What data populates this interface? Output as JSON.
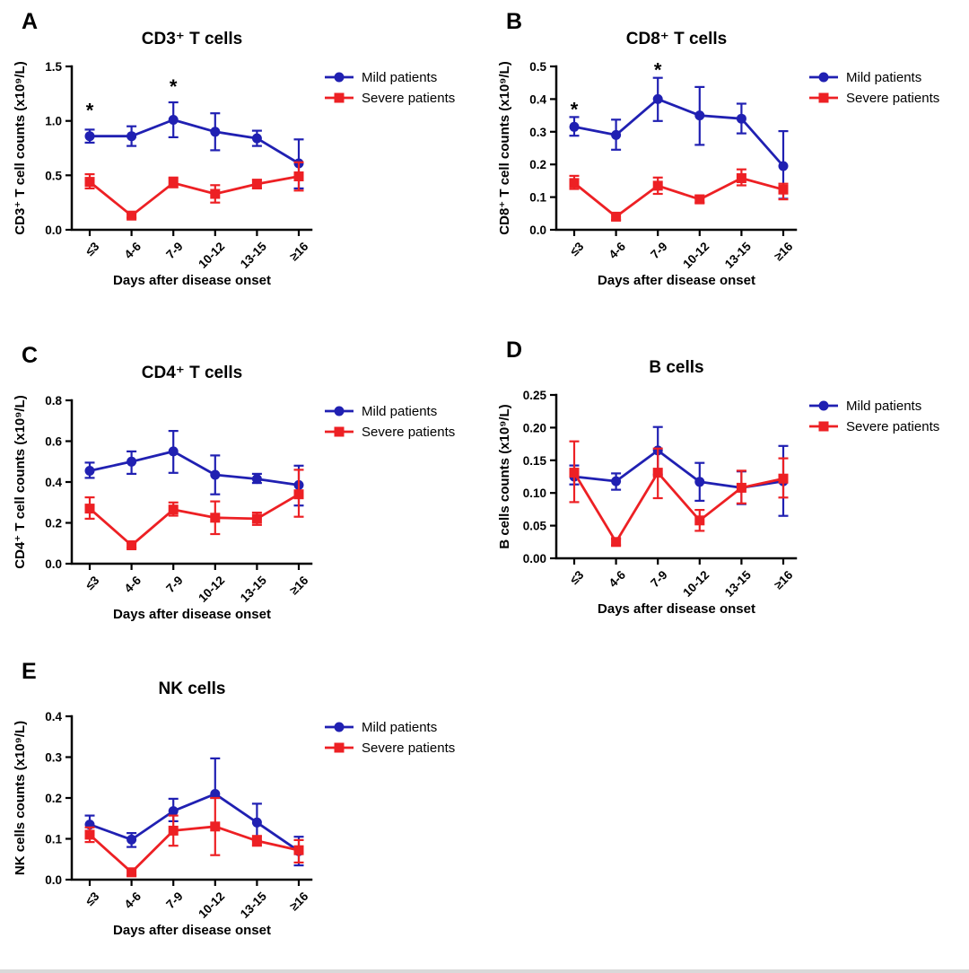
{
  "figure": {
    "xlabel": "Days after disease onset",
    "categories": [
      "≤3",
      "4-6",
      "7-9",
      "10-12",
      "13-15",
      "≥16"
    ],
    "colors": {
      "mild": "#2020B2",
      "severe": "#ED2024",
      "axis": "#000000"
    },
    "legend": {
      "position": "right-top",
      "items": [
        "Mild patients",
        "Severe patients"
      ]
    }
  },
  "chart_data": [
    {
      "type": "line",
      "panel_label": "A",
      "title": "CD3⁺ T cells",
      "ylabel": "CD3⁺ T cell counts (x10⁹/L)",
      "xlabel": "Days after disease onset",
      "categories": [
        "≤3",
        "4-6",
        "7-9",
        "10-12",
        "13-15",
        "≥16"
      ],
      "ylim": [
        0.0,
        1.5
      ],
      "yticks": [
        0.0,
        0.5,
        1.0,
        1.5
      ],
      "ydecimals": 1,
      "grid": false,
      "series": [
        {
          "name": "Mild patients",
          "color_key": "mild",
          "marker": "circle",
          "values": [
            0.86,
            0.86,
            1.01,
            0.9,
            0.84,
            0.61
          ],
          "err_up": [
            0.06,
            0.09,
            0.16,
            0.17,
            0.07,
            0.22
          ],
          "err_dn": [
            0.06,
            0.09,
            0.16,
            0.17,
            0.07,
            0.23
          ]
        },
        {
          "name": "Severe patients",
          "color_key": "severe",
          "marker": "square",
          "values": [
            0.44,
            0.13,
            0.43,
            0.33,
            0.42,
            0.49
          ],
          "err_up": [
            0.07,
            0.02,
            0.05,
            0.08,
            0.04,
            0.13
          ],
          "err_dn": [
            0.06,
            0.02,
            0.04,
            0.08,
            0.04,
            0.13
          ]
        }
      ],
      "significance": [
        {
          "category_index": 0,
          "label": "*",
          "y": 1.1
        },
        {
          "category_index": 2,
          "label": "*",
          "y": 1.32
        }
      ]
    },
    {
      "type": "line",
      "panel_label": "B",
      "title": "CD8⁺ T cells",
      "ylabel": "CD8⁺ T cell counts (x10⁹/L)",
      "xlabel": "Days after disease onset",
      "categories": [
        "≤3",
        "4-6",
        "7-9",
        "10-12",
        "13-15",
        "≥16"
      ],
      "ylim": [
        0.0,
        0.5
      ],
      "yticks": [
        0.0,
        0.1,
        0.2,
        0.3,
        0.4,
        0.5
      ],
      "ydecimals": 1,
      "grid": false,
      "series": [
        {
          "name": "Mild patients",
          "color_key": "mild",
          "marker": "circle",
          "values": [
            0.315,
            0.29,
            0.4,
            0.35,
            0.34,
            0.195
          ],
          "err_up": [
            0.03,
            0.047,
            0.065,
            0.087,
            0.046,
            0.107
          ],
          "err_dn": [
            0.027,
            0.045,
            0.067,
            0.09,
            0.045,
            0.1
          ]
        },
        {
          "name": "Severe patients",
          "color_key": "severe",
          "marker": "square",
          "values": [
            0.143,
            0.04,
            0.135,
            0.093,
            0.158,
            0.123
          ],
          "err_up": [
            0.022,
            0.012,
            0.025,
            0.012,
            0.027,
            0.018
          ],
          "err_dn": [
            0.018,
            0.01,
            0.025,
            0.01,
            0.022,
            0.03
          ]
        }
      ],
      "significance": [
        {
          "category_index": 0,
          "label": "*",
          "y": 0.37
        },
        {
          "category_index": 2,
          "label": "*",
          "y": 0.49
        }
      ]
    },
    {
      "type": "line",
      "panel_label": "C",
      "title": "CD4⁺ T cells",
      "ylabel": "CD4⁺ T cell counts (x10⁹/L)",
      "xlabel": "Days after disease onset",
      "categories": [
        "≤3",
        "4-6",
        "7-9",
        "10-12",
        "13-15",
        "≥16"
      ],
      "ylim": [
        0.0,
        0.8
      ],
      "yticks": [
        0.0,
        0.2,
        0.4,
        0.6,
        0.8
      ],
      "ydecimals": 1,
      "grid": false,
      "series": [
        {
          "name": "Mild patients",
          "color_key": "mild",
          "marker": "circle",
          "values": [
            0.455,
            0.5,
            0.55,
            0.435,
            0.415,
            0.385
          ],
          "err_up": [
            0.04,
            0.05,
            0.1,
            0.095,
            0.025,
            0.095
          ],
          "err_dn": [
            0.035,
            0.06,
            0.105,
            0.095,
            0.02,
            0.1
          ]
        },
        {
          "name": "Severe patients",
          "color_key": "severe",
          "marker": "square",
          "values": [
            0.27,
            0.09,
            0.265,
            0.225,
            0.22,
            0.34
          ],
          "err_up": [
            0.055,
            0.012,
            0.035,
            0.08,
            0.03,
            0.12
          ],
          "err_dn": [
            0.05,
            0.012,
            0.03,
            0.08,
            0.03,
            0.11
          ]
        }
      ],
      "significance": []
    },
    {
      "type": "line",
      "panel_label": "D",
      "title": "B cells",
      "ylabel": "B cells counts (x10⁹/L)",
      "xlabel": "Days after disease onset",
      "categories": [
        "≤3",
        "4-6",
        "7-9",
        "10-12",
        "13-15",
        "≥16"
      ],
      "ylim": [
        0.0,
        0.25
      ],
      "yticks": [
        0.0,
        0.05,
        0.1,
        0.15,
        0.2,
        0.25
      ],
      "ydecimals": 2,
      "grid": false,
      "series": [
        {
          "name": "Mild patients",
          "color_key": "mild",
          "marker": "circle",
          "values": [
            0.125,
            0.118,
            0.165,
            0.117,
            0.108,
            0.118
          ],
          "err_up": [
            0.017,
            0.012,
            0.036,
            0.029,
            0.025,
            0.054
          ],
          "err_dn": [
            0.012,
            0.013,
            0.037,
            0.029,
            0.025,
            0.053
          ]
        },
        {
          "name": "Severe patients",
          "color_key": "severe",
          "marker": "square",
          "values": [
            0.131,
            0.025,
            0.131,
            0.058,
            0.108,
            0.122
          ],
          "err_up": [
            0.048,
            0.005,
            0.037,
            0.016,
            0.026,
            0.031
          ],
          "err_dn": [
            0.045,
            0.005,
            0.039,
            0.016,
            0.024,
            0.029
          ]
        }
      ],
      "significance": []
    },
    {
      "type": "line",
      "panel_label": "E",
      "title": "NK cells",
      "ylabel": "NK cells counts (x10⁹/L)",
      "xlabel": "Days after disease onset",
      "categories": [
        "≤3",
        "4-6",
        "7-9",
        "10-12",
        "13-15",
        "≥16"
      ],
      "ylim": [
        0.0,
        0.4
      ],
      "yticks": [
        0.0,
        0.1,
        0.2,
        0.3,
        0.4
      ],
      "ydecimals": 1,
      "grid": false,
      "series": [
        {
          "name": "Mild patients",
          "color_key": "mild",
          "marker": "circle",
          "values": [
            0.135,
            0.098,
            0.168,
            0.21,
            0.14,
            0.07
          ],
          "err_up": [
            0.022,
            0.016,
            0.03,
            0.087,
            0.046,
            0.035
          ],
          "err_dn": [
            0.02,
            0.018,
            0.025,
            0.01,
            0.045,
            0.035
          ]
        },
        {
          "name": "Severe patients",
          "color_key": "severe",
          "marker": "square",
          "values": [
            0.11,
            0.018,
            0.12,
            0.13,
            0.095,
            0.072
          ],
          "err_up": [
            0.018,
            0.008,
            0.037,
            0.07,
            0.012,
            0.025
          ],
          "err_dn": [
            0.018,
            0.008,
            0.037,
            0.07,
            0.012,
            0.03
          ]
        }
      ],
      "significance": []
    }
  ]
}
